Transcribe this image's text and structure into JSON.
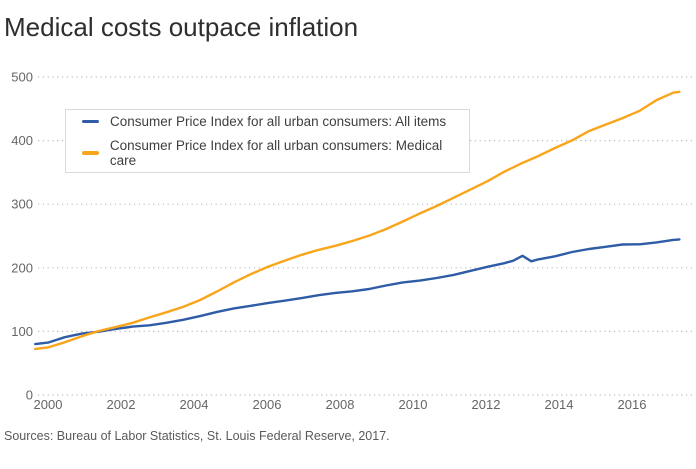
{
  "title": "Medical costs outpace inflation",
  "source": "Sources: Bureau of Labor Statistics, St. Louis Federal Reserve, 2017.",
  "colors": {
    "all_items_line": "#2e5ca6",
    "medical_care_line": "#f9a51b",
    "gridline": "#bcbcbc",
    "tick_text": "#666666",
    "title_text": "#2e2e2e",
    "source_text": "#5a5a5a",
    "legend_border": "#d9d9d9"
  },
  "chart_data": {
    "type": "line",
    "title": "Medical costs outpace inflation",
    "xlabel": "",
    "ylabel": "",
    "ylim": [
      0,
      500
    ],
    "xlim": [
      1999.6,
      2017.45
    ],
    "y_ticks": [
      0,
      100,
      200,
      300,
      400,
      500
    ],
    "x_ticks": [
      2000,
      2002,
      2004,
      2006,
      2008,
      2010,
      2012,
      2014,
      2016
    ],
    "grid": "horizontal dotted",
    "legend_position": "inside top-left, boxed",
    "series": [
      {
        "name": "Consumer Price Index for all urban consumers: All items",
        "color": "#2e5ca6",
        "points": [
          [
            1999.65,
            80.0
          ],
          [
            2000,
            82.4
          ],
          [
            2000.46,
            90.9
          ],
          [
            2000.93,
            96.5
          ],
          [
            2001.39,
            99.6
          ],
          [
            2001.85,
            103.9
          ],
          [
            2002.32,
            107.6
          ],
          [
            2002.78,
            109.6
          ],
          [
            2003.24,
            113.6
          ],
          [
            2003.7,
            118.3
          ],
          [
            2004.17,
            124.0
          ],
          [
            2004.63,
            130.7
          ],
          [
            2005.09,
            136.2
          ],
          [
            2005.56,
            140.3
          ],
          [
            2006.02,
            144.5
          ],
          [
            2006.48,
            148.2
          ],
          [
            2006.95,
            152.4
          ],
          [
            2007.41,
            156.9
          ],
          [
            2007.87,
            160.5
          ],
          [
            2008.34,
            163.0
          ],
          [
            2008.8,
            166.6
          ],
          [
            2009.26,
            172.2
          ],
          [
            2009.72,
            177.1
          ],
          [
            2010.19,
            179.9
          ],
          [
            2010.65,
            184.0
          ],
          [
            2011.11,
            188.9
          ],
          [
            2011.58,
            195.3
          ],
          [
            2012.04,
            201.6
          ],
          [
            2012.5,
            207.3
          ],
          [
            2012.74,
            211.0
          ],
          [
            2013.0,
            218.8
          ],
          [
            2013.24,
            210.2
          ],
          [
            2013.43,
            213.2
          ],
          [
            2013.89,
            218.1
          ],
          [
            2014.36,
            224.9
          ],
          [
            2014.82,
            229.6
          ],
          [
            2015.28,
            233.0
          ],
          [
            2015.74,
            236.7
          ],
          [
            2016.21,
            237.0
          ],
          [
            2016.67,
            240.0
          ],
          [
            2017.13,
            243.8
          ],
          [
            2017.3,
            244.6
          ]
        ]
      },
      {
        "name": "Consumer Price Index for all urban consumers: Medical care",
        "color": "#f9a51b",
        "points": [
          [
            1999.65,
            72.5
          ],
          [
            2000,
            74.9
          ],
          [
            2000.46,
            82.9
          ],
          [
            2000.93,
            92.5
          ],
          [
            2001.39,
            100.6
          ],
          [
            2001.85,
            106.8
          ],
          [
            2002.32,
            113.5
          ],
          [
            2002.78,
            122.0
          ],
          [
            2003.24,
            130.1
          ],
          [
            2003.7,
            138.6
          ],
          [
            2004.17,
            149.3
          ],
          [
            2004.63,
            162.8
          ],
          [
            2005.09,
            177.0
          ],
          [
            2005.56,
            190.1
          ],
          [
            2006.02,
            201.4
          ],
          [
            2006.48,
            211.0
          ],
          [
            2006.95,
            220.5
          ],
          [
            2007.41,
            228.2
          ],
          [
            2007.87,
            234.6
          ],
          [
            2008.34,
            242.1
          ],
          [
            2008.8,
            250.6
          ],
          [
            2009.26,
            260.8
          ],
          [
            2009.72,
            272.8
          ],
          [
            2010.19,
            285.6
          ],
          [
            2010.65,
            297.1
          ],
          [
            2011.11,
            310.1
          ],
          [
            2011.58,
            323.2
          ],
          [
            2012.04,
            336.2
          ],
          [
            2012.5,
            351.1
          ],
          [
            2012.97,
            364.1
          ],
          [
            2013.43,
            375.6
          ],
          [
            2013.89,
            388.4
          ],
          [
            2014.36,
            400.3
          ],
          [
            2014.82,
            414.9
          ],
          [
            2015.28,
            425.1
          ],
          [
            2015.74,
            435.3
          ],
          [
            2016.21,
            446.8
          ],
          [
            2016.67,
            463.7
          ],
          [
            2017.13,
            475.3
          ],
          [
            2017.3,
            476.8
          ]
        ]
      }
    ]
  }
}
